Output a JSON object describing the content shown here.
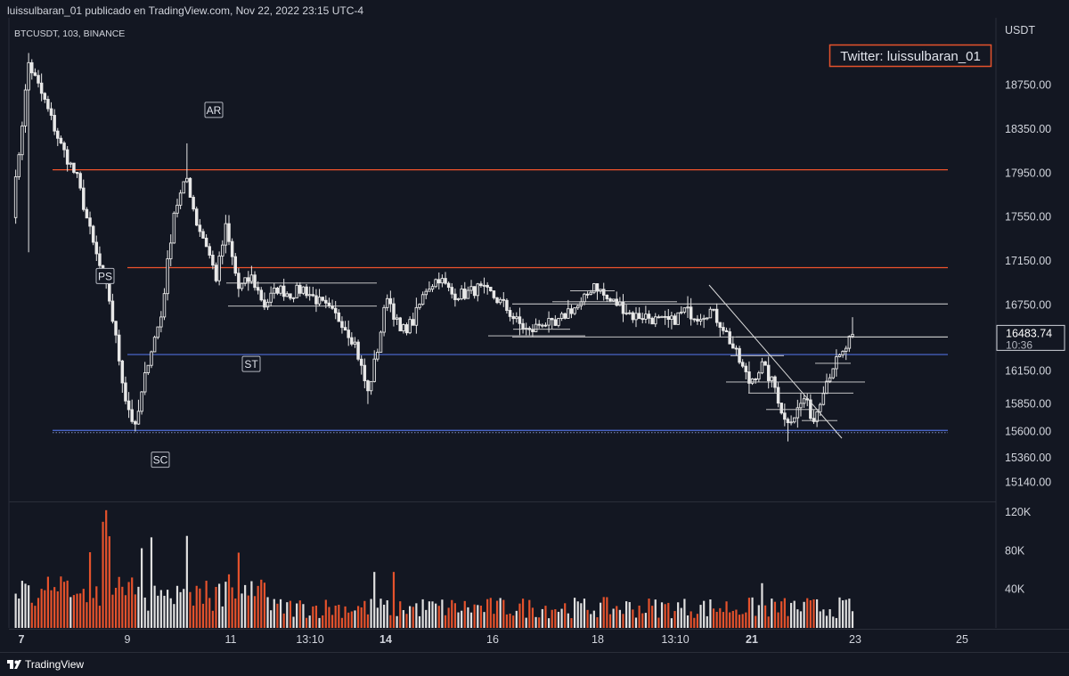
{
  "header": {
    "publish_line": "luissulbaran_01 publicado en TradingView.com, Nov 22, 2022 23:15 UTC-4",
    "symbol_line": "BTCUSDT, 103, BINANCE",
    "currency_label": "USDT"
  },
  "watermark": {
    "text": "Twitter: luissulbaran_01",
    "border_color": "#e5522c"
  },
  "footer": {
    "brand": "TradingView",
    "brand_icon": "tradingview-logo-icon"
  },
  "colors": {
    "background": "#131722",
    "grid": "#1e222d",
    "up": "#e8e8e8",
    "down": "#e8e8e8",
    "resistance": "#f0532c",
    "support": "#4f6ed8",
    "volume_up": "#e0e0e0",
    "volume_down": "#e5522c"
  },
  "chart_data": {
    "type": "candlestick",
    "price_axis": {
      "ticks": [
        18750,
        18350,
        17950,
        17550,
        17150,
        16750,
        16150,
        15850,
        15600,
        15360,
        15140
      ],
      "current_price": "16483.74",
      "countdown": "10:36"
    },
    "volume_axis": {
      "ticks": [
        "120K",
        "80K",
        "40K"
      ]
    },
    "x_axis": {
      "ticks": [
        {
          "label": "7",
          "bold": true
        },
        {
          "label": "9",
          "bold": false
        },
        {
          "label": "11",
          "bold": false
        },
        {
          "label": "13:10",
          "bold": false
        },
        {
          "label": "14",
          "bold": true
        },
        {
          "label": "16",
          "bold": false
        },
        {
          "label": "18",
          "bold": false
        },
        {
          "label": "13:10",
          "bold": false
        },
        {
          "label": "21",
          "bold": true
        },
        {
          "label": "23",
          "bold": false
        },
        {
          "label": "25",
          "bold": false
        }
      ]
    },
    "levels": [
      {
        "price": 17980,
        "color": "#f0532c"
      },
      {
        "price": 17090,
        "color": "#f0532c"
      },
      {
        "price": 16300,
        "color": "#4f6ed8"
      },
      {
        "price": 15610,
        "color": "#4f6ed8"
      }
    ],
    "annotations": [
      {
        "label": "AR",
        "price": 18520
      },
      {
        "label": "PS",
        "price": 17010
      },
      {
        "label": "ST",
        "price": 16210
      },
      {
        "label": "SC",
        "price": 15340
      }
    ],
    "anchors": [
      [
        0,
        17600
      ],
      [
        5,
        18950
      ],
      [
        10,
        18600
      ],
      [
        15,
        18200
      ],
      [
        20,
        17900
      ],
      [
        25,
        17300
      ],
      [
        30,
        16800
      ],
      [
        35,
        15900
      ],
      [
        38,
        15620
      ],
      [
        42,
        16250
      ],
      [
        46,
        16650
      ],
      [
        50,
        17600
      ],
      [
        54,
        17900
      ],
      [
        57,
        17500
      ],
      [
        60,
        17300
      ],
      [
        63,
        17000
      ],
      [
        66,
        17450
      ],
      [
        70,
        16900
      ],
      [
        74,
        17000
      ],
      [
        78,
        16750
      ],
      [
        82,
        16900
      ],
      [
        86,
        16850
      ],
      [
        90,
        16900
      ],
      [
        94,
        16800
      ],
      [
        98,
        16700
      ],
      [
        102,
        16600
      ],
      [
        106,
        16400
      ],
      [
        110,
        15950
      ],
      [
        113,
        16350
      ],
      [
        116,
        16850
      ],
      [
        120,
        16500
      ],
      [
        124,
        16600
      ],
      [
        128,
        16900
      ],
      [
        132,
        17000
      ],
      [
        136,
        16850
      ],
      [
        140,
        16850
      ],
      [
        144,
        16900
      ],
      [
        148,
        16850
      ],
      [
        152,
        16750
      ],
      [
        156,
        16600
      ],
      [
        160,
        16500
      ],
      [
        164,
        16600
      ],
      [
        168,
        16550
      ],
      [
        172,
        16700
      ],
      [
        176,
        16750
      ],
      [
        180,
        16950
      ],
      [
        184,
        16800
      ],
      [
        188,
        16750
      ],
      [
        192,
        16650
      ],
      [
        196,
        16650
      ],
      [
        200,
        16600
      ],
      [
        204,
        16600
      ],
      [
        208,
        16700
      ],
      [
        212,
        16650
      ],
      [
        216,
        16700
      ],
      [
        220,
        16550
      ],
      [
        224,
        16300
      ],
      [
        228,
        16050
      ],
      [
        232,
        16200
      ],
      [
        236,
        16000
      ],
      [
        239,
        15700
      ],
      [
        242,
        15750
      ],
      [
        245,
        15900
      ],
      [
        248,
        15700
      ],
      [
        251,
        16000
      ],
      [
        254,
        16200
      ],
      [
        257,
        16300
      ],
      [
        260,
        16490
      ]
    ]
  }
}
